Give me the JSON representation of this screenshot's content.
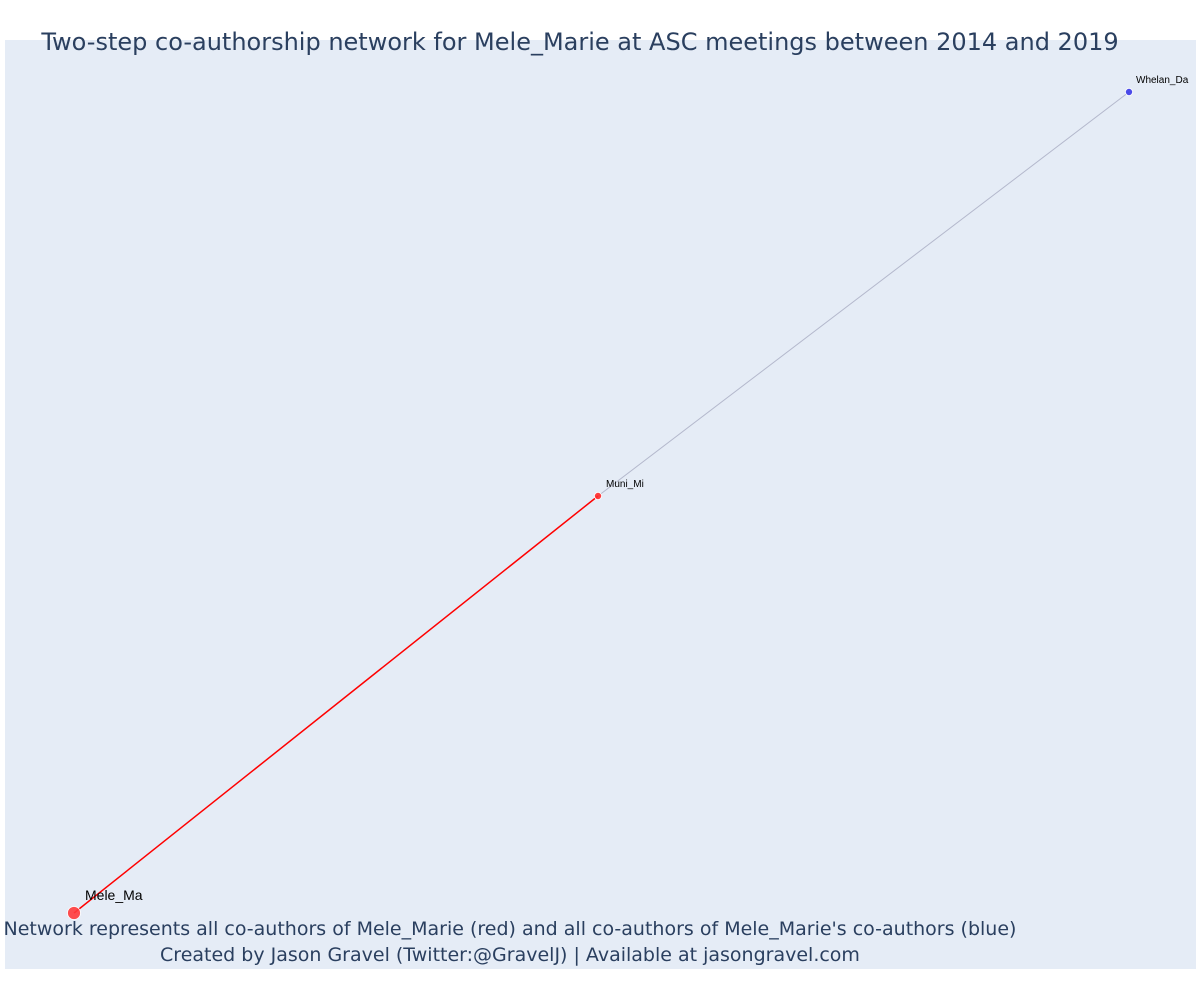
{
  "title": "Two-step co-authorship network for Mele_Marie at ASC meetings between 2014 and 2019",
  "caption": {
    "line1": "Network represents all co-authors of Mele_Marie (red) and all co-authors of Mele_Marie's co-authors (blue)",
    "line2": "Created by Jason Gravel (Twitter:@GravelJ) | Available at jasongravel.com"
  },
  "colors": {
    "background": "#e5ecf6",
    "ego": "#ff3b3b",
    "first_step": "#ff2a2a",
    "second_step": "#3a3ae8",
    "edge_first_step": "#ff0000",
    "edge_second_step": "#b4b8cc",
    "text": "#2a3f5f"
  },
  "nodes": [
    {
      "id": "mele",
      "label": "Mele_Ma",
      "group": "ego"
    },
    {
      "id": "muni",
      "label": "Muni_Mi",
      "group": "first_step"
    },
    {
      "id": "whelan",
      "label": "Whelan_Da",
      "group": "second_step"
    }
  ],
  "edges": [
    {
      "source": "mele",
      "target": "muni",
      "type": "first_step"
    },
    {
      "source": "muni",
      "target": "whelan",
      "type": "second_step"
    }
  ]
}
